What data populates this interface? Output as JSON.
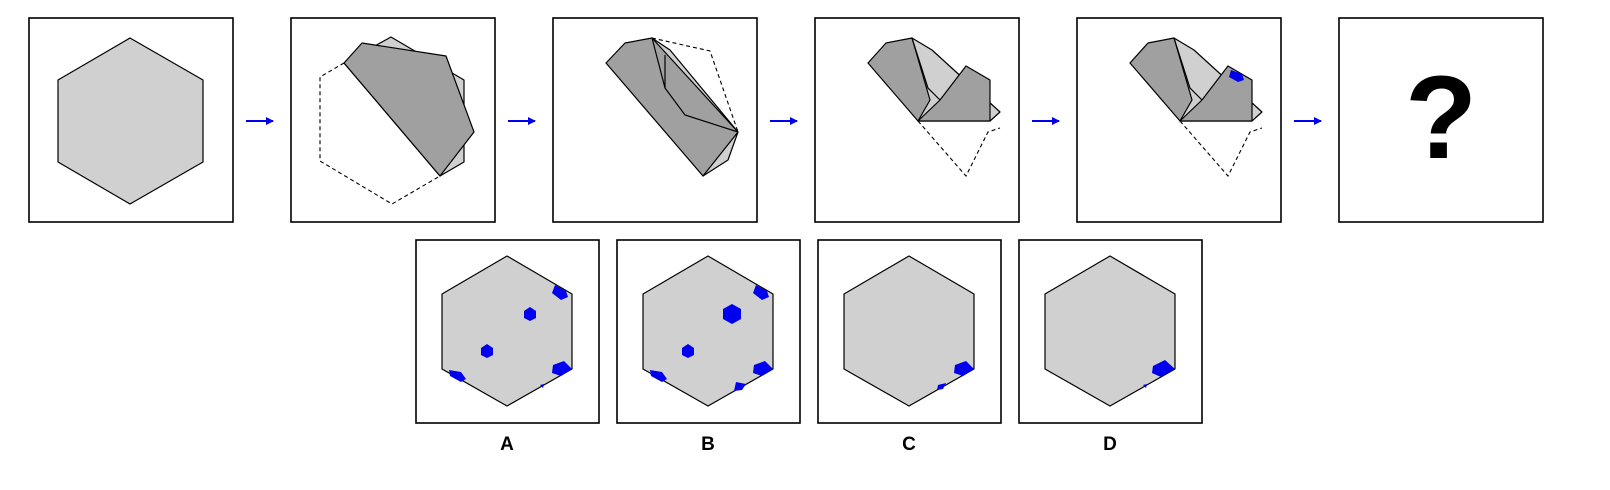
{
  "sequence": {
    "question_mark": "?"
  },
  "options": [
    {
      "label": "A"
    },
    {
      "label": "B"
    },
    {
      "label": "C"
    },
    {
      "label": "D"
    }
  ],
  "colors": {
    "paper": "#d0d0d0",
    "folded": "#a0a0a0",
    "punch": "#0000ee",
    "arrow": "#0000ee"
  }
}
